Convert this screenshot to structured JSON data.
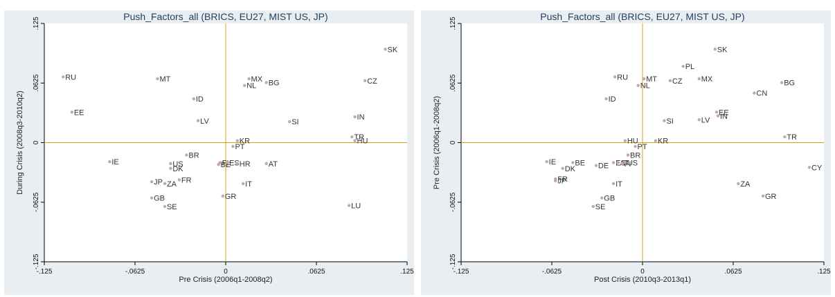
{
  "colors": {
    "panel_bg": "#e8eef2",
    "plot_bg": "#ffffff",
    "ref_line": "#d4a017",
    "marker": "#c2a9a9",
    "title": "#1f3f5f"
  },
  "chart_data": [
    {
      "type": "scatter",
      "title": "Push_Factors_all (BRICS, EU27, MIST US, JP)",
      "xlabel": "Pre Crisis (2006q1-2008q2)",
      "ylabel": "During Crisis (2008q3-2010q2)",
      "xlim": [
        -0.125,
        0.125
      ],
      "ylim": [
        -0.125,
        0.125
      ],
      "xticks": [
        -0.125,
        -0.0625,
        0,
        0.0625,
        0.125
      ],
      "yticks": [
        -0.125,
        -0.0625,
        0,
        0.0625,
        0.125
      ],
      "xtick_labels": [
        "-.125",
        "-.0625",
        "0",
        ".0625",
        ".125"
      ],
      "ytick_labels": [
        "-.125",
        "-.0625",
        "0",
        ".0625",
        ".125"
      ],
      "reference_lines": {
        "x": 0,
        "y": 0
      },
      "grid": false,
      "points": [
        {
          "label": "SK",
          "x": 0.11,
          "y": 0.098
        },
        {
          "label": "RU",
          "x": -0.112,
          "y": 0.069
        },
        {
          "label": "MT",
          "x": -0.047,
          "y": 0.067
        },
        {
          "label": "MX",
          "x": 0.016,
          "y": 0.067
        },
        {
          "label": "NL",
          "x": 0.013,
          "y": 0.06
        },
        {
          "label": "BG",
          "x": 0.028,
          "y": 0.063
        },
        {
          "label": "CZ",
          "x": 0.096,
          "y": 0.065
        },
        {
          "label": "ID",
          "x": -0.022,
          "y": 0.046
        },
        {
          "label": "EE",
          "x": -0.106,
          "y": 0.032
        },
        {
          "label": "LV",
          "x": -0.019,
          "y": 0.023
        },
        {
          "label": "SI",
          "x": 0.044,
          "y": 0.022
        },
        {
          "label": "IN",
          "x": 0.089,
          "y": 0.027
        },
        {
          "label": "TR",
          "x": 0.087,
          "y": 0.006
        },
        {
          "label": "HU",
          "x": 0.089,
          "y": 0.002
        },
        {
          "label": "KR",
          "x": 0.008,
          "y": 0.002
        },
        {
          "label": "PT",
          "x": 0.005,
          "y": -0.004
        },
        {
          "label": "BR",
          "x": -0.027,
          "y": -0.013
        },
        {
          "label": "IE",
          "x": -0.08,
          "y": -0.02
        },
        {
          "label": "US",
          "x": -0.038,
          "y": -0.022
        },
        {
          "label": "DK",
          "x": -0.038,
          "y": -0.027
        },
        {
          "label": "BE",
          "x": -0.005,
          "y": -0.023
        },
        {
          "label": "FI",
          "x": -0.004,
          "y": -0.021
        },
        {
          "label": "ES",
          "x": 0.001,
          "y": -0.021
        },
        {
          "label": "HR",
          "x": 0.008,
          "y": -0.022
        },
        {
          "label": "AT",
          "x": 0.028,
          "y": -0.022
        },
        {
          "label": "FR",
          "x": -0.032,
          "y": -0.039
        },
        {
          "label": "JP",
          "x": -0.051,
          "y": -0.041
        },
        {
          "label": "ZA",
          "x": -0.042,
          "y": -0.043
        },
        {
          "label": "IT",
          "x": 0.012,
          "y": -0.043
        },
        {
          "label": "GB",
          "x": -0.051,
          "y": -0.058
        },
        {
          "label": "GR",
          "x": -0.002,
          "y": -0.056
        },
        {
          "label": "SE",
          "x": -0.042,
          "y": -0.067
        },
        {
          "label": "LU",
          "x": 0.085,
          "y": -0.066
        }
      ]
    },
    {
      "type": "scatter",
      "title": "Push_Factors_all (BRICS, EU27, MIST US, JP)",
      "xlabel": "Post Crisis (2010q3-2013q1)",
      "ylabel": "Pre Crisis (2006q1-2008q2)",
      "xlim": [
        -0.125,
        0.125
      ],
      "ylim": [
        -0.125,
        0.125
      ],
      "xticks": [
        -0.125,
        -0.0625,
        0,
        0.0625,
        0.125
      ],
      "yticks": [
        -0.125,
        -0.0625,
        0,
        0.0625,
        0.125
      ],
      "xtick_labels": [
        "-.125",
        "-.0625",
        "0",
        ".0625",
        ".125"
      ],
      "ytick_labels": [
        "-.125",
        "-.0625",
        "0",
        ".0625",
        ".125"
      ],
      "reference_lines": {
        "x": 0,
        "y": 0
      },
      "grid": false,
      "points": [
        {
          "label": "SK",
          "x": 0.05,
          "y": 0.098
        },
        {
          "label": "PL",
          "x": 0.028,
          "y": 0.08
        },
        {
          "label": "RU",
          "x": -0.019,
          "y": 0.069
        },
        {
          "label": "MT",
          "x": 0.001,
          "y": 0.067
        },
        {
          "label": "NL",
          "x": -0.003,
          "y": 0.06
        },
        {
          "label": "CZ",
          "x": 0.019,
          "y": 0.065
        },
        {
          "label": "MX",
          "x": 0.039,
          "y": 0.067
        },
        {
          "label": "BG",
          "x": 0.096,
          "y": 0.063
        },
        {
          "label": "CN",
          "x": 0.077,
          "y": 0.052
        },
        {
          "label": "ID",
          "x": -0.025,
          "y": 0.046
        },
        {
          "label": "EE",
          "x": 0.051,
          "y": 0.032
        },
        {
          "label": "IN",
          "x": 0.052,
          "y": 0.028
        },
        {
          "label": "SI",
          "x": 0.015,
          "y": 0.023
        },
        {
          "label": "LV",
          "x": 0.039,
          "y": 0.024
        },
        {
          "label": "TR",
          "x": 0.098,
          "y": 0.006
        },
        {
          "label": "HU",
          "x": -0.012,
          "y": 0.002
        },
        {
          "label": "KR",
          "x": 0.009,
          "y": 0.002
        },
        {
          "label": "PT",
          "x": -0.005,
          "y": -0.004
        },
        {
          "label": "BR",
          "x": -0.01,
          "y": -0.013
        },
        {
          "label": "IE",
          "x": -0.066,
          "y": -0.02
        },
        {
          "label": "BE",
          "x": -0.048,
          "y": -0.021
        },
        {
          "label": "DK",
          "x": -0.055,
          "y": -0.027
        },
        {
          "label": "DE",
          "x": -0.032,
          "y": -0.024
        },
        {
          "label": "ES",
          "x": -0.02,
          "y": -0.021
        },
        {
          "label": "AT",
          "x": -0.017,
          "y": -0.021
        },
        {
          "label": "FI",
          "x": -0.014,
          "y": -0.022
        },
        {
          "label": "US",
          "x": -0.012,
          "y": -0.021
        },
        {
          "label": "CY",
          "x": 0.115,
          "y": -0.026
        },
        {
          "label": "FR",
          "x": -0.06,
          "y": -0.038
        },
        {
          "label": "JP",
          "x": -0.06,
          "y": -0.04
        },
        {
          "label": "IT",
          "x": -0.02,
          "y": -0.043
        },
        {
          "label": "ZA",
          "x": 0.066,
          "y": -0.043
        },
        {
          "label": "GB",
          "x": -0.028,
          "y": -0.058
        },
        {
          "label": "GR",
          "x": 0.083,
          "y": -0.056
        },
        {
          "label": "SE",
          "x": -0.034,
          "y": -0.067
        }
      ]
    }
  ]
}
